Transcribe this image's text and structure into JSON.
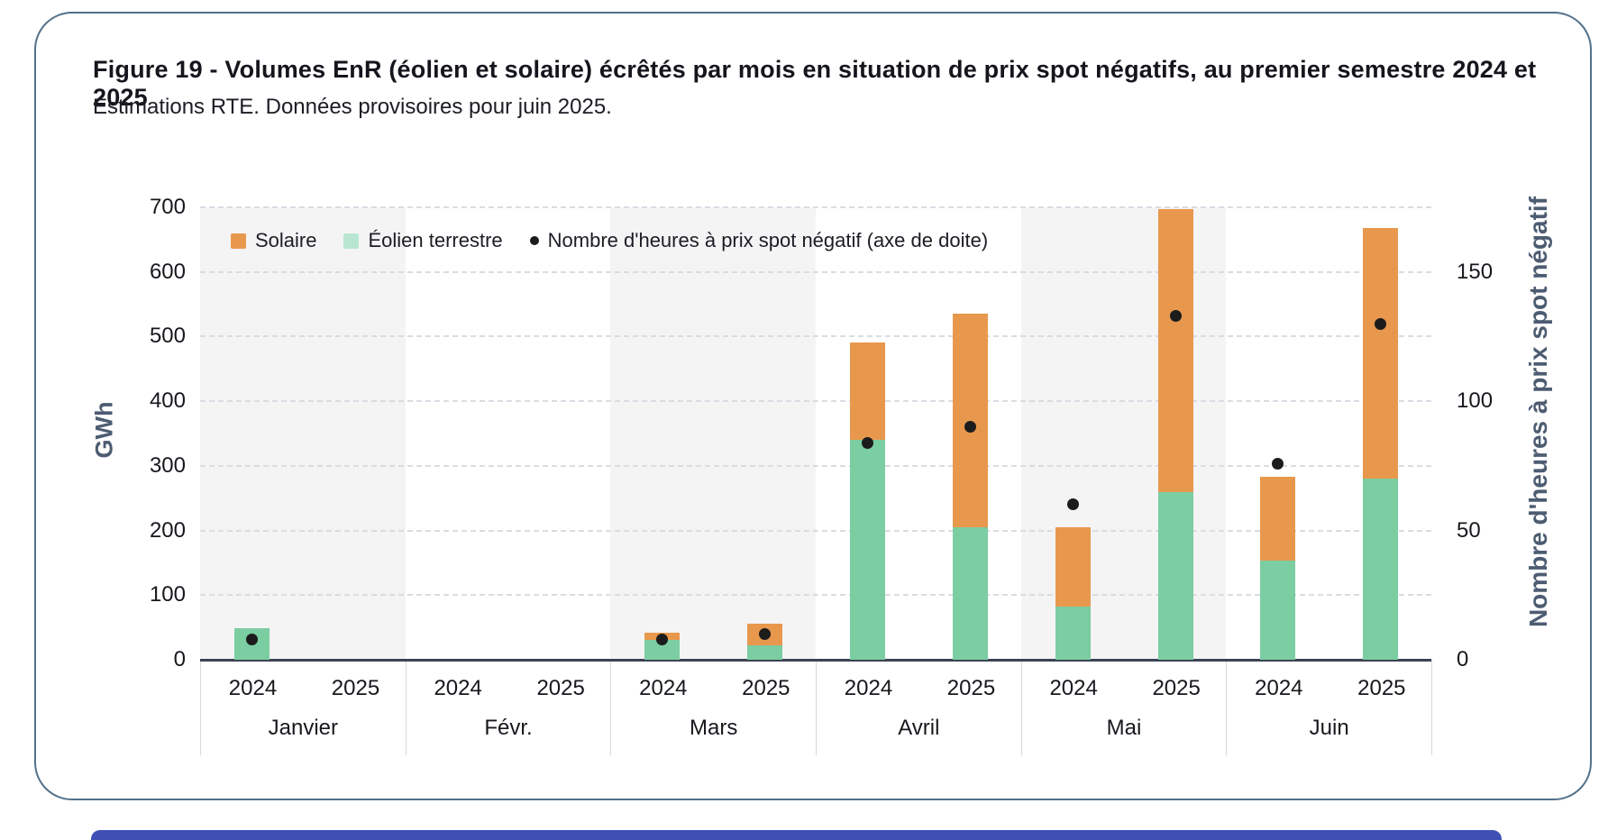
{
  "figure": {
    "title": "Figure 19 - Volumes EnR (éolien et solaire) écrêtés par mois en situation de prix spot négatifs, au premier semestre 2024 et 2025",
    "subtitle": "Estimations RTE. Données provisoires pour juin 2025."
  },
  "legend": {
    "solaire": "Solaire",
    "eolien": "Éolien terrestre",
    "dots": "Nombre d'heures à prix spot négatif (axe de doite)"
  },
  "axes": {
    "left_label": "GWh",
    "right_label": "Nombre d'heures à prix spot négatif"
  },
  "colors": {
    "solaire": "#e8984d",
    "eolien": "#7bcda2",
    "eolien_legend": "#b9e6d1",
    "dot": "#1c1c1c",
    "band": "#f4f4f5",
    "grid": "#d9dce3",
    "axis_line": "#3c4353",
    "axis_title": "#4d5c71",
    "card_border": "#52718a",
    "bottom_bar": "#3e50b4"
  },
  "chart_data": {
    "type": "bar",
    "stacked": true,
    "title": "Volumes EnR écrêtés par mois en situation de prix spot négatifs, premier semestre 2024 et 2025",
    "ylabel_left": "GWh",
    "ylabel_right": "Nombre d'heures à prix spot négatif",
    "ylim_left": [
      0,
      700
    ],
    "yticks_left": [
      0,
      100,
      200,
      300,
      400,
      500,
      600,
      700
    ],
    "ylim_right": [
      0,
      175
    ],
    "yticks_right": [
      0,
      50,
      100,
      150
    ],
    "grid": "dashed-horizontal",
    "legend_position": "top-left-inside",
    "series_names": [
      "Solaire",
      "Éolien terrestre"
    ],
    "dot_series_name": "Nombre d'heures à prix spot négatif (axe de doite)",
    "unit_bars": "GWh",
    "unit_dots": "heures",
    "groups": [
      {
        "month": "Janvier",
        "bars": [
          {
            "year": "2024",
            "eolien_gwh": 49,
            "solaire_gwh": 0,
            "heures": 8
          },
          {
            "year": "2025",
            "eolien_gwh": 0,
            "solaire_gwh": 0,
            "heures": null
          }
        ]
      },
      {
        "month": "Févr.",
        "bars": [
          {
            "year": "2024",
            "eolien_gwh": 0,
            "solaire_gwh": 0,
            "heures": null
          },
          {
            "year": "2025",
            "eolien_gwh": 0,
            "solaire_gwh": 0,
            "heures": null
          }
        ]
      },
      {
        "month": "Mars",
        "bars": [
          {
            "year": "2024",
            "eolien_gwh": 30,
            "solaire_gwh": 11,
            "heures": 8
          },
          {
            "year": "2025",
            "eolien_gwh": 22,
            "solaire_gwh": 34,
            "heures": 10
          }
        ]
      },
      {
        "month": "Avril",
        "bars": [
          {
            "year": "2024",
            "eolien_gwh": 340,
            "solaire_gwh": 150,
            "heures": 84
          },
          {
            "year": "2025",
            "eolien_gwh": 205,
            "solaire_gwh": 330,
            "heures": 90
          }
        ]
      },
      {
        "month": "Mai",
        "bars": [
          {
            "year": "2024",
            "eolien_gwh": 82,
            "solaire_gwh": 123,
            "heures": 60
          },
          {
            "year": "2025",
            "eolien_gwh": 260,
            "solaire_gwh": 438,
            "heures": 133
          }
        ]
      },
      {
        "month": "Juin",
        "bars": [
          {
            "year": "2024",
            "eolien_gwh": 153,
            "solaire_gwh": 130,
            "heures": 76
          },
          {
            "year": "2025",
            "eolien_gwh": 280,
            "solaire_gwh": 388,
            "heures": 130
          }
        ]
      }
    ]
  }
}
